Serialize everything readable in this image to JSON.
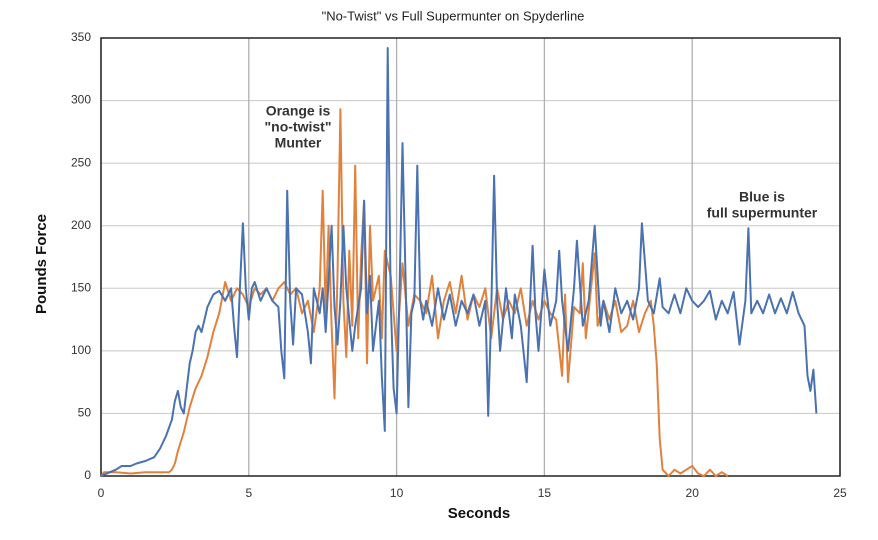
{
  "chart_data": {
    "type": "line",
    "title": "\"No-Twist\"  vs Full Supermunter on Spyderline",
    "x_label": "Seconds",
    "y_label": "Pounds Force",
    "xlim": [
      0,
      25
    ],
    "xticks": [
      0,
      5,
      10,
      15,
      20,
      25
    ],
    "ylim": [
      0,
      350
    ],
    "yticks": [
      0,
      50,
      100,
      150,
      200,
      250,
      300,
      350
    ],
    "grid": true,
    "annotations": [
      {
        "lines": [
          "Orange is",
          "\"no-twist\"",
          "Munter"
        ],
        "color": "#e0823d"
      },
      {
        "lines": [
          "Blue is",
          "full supermunter"
        ],
        "color": "#4a72b0"
      }
    ],
    "series": [
      {
        "color": "#4a72b0",
        "x": [
          0,
          0.3,
          0.5,
          0.7,
          1.0,
          1.2,
          1.5,
          1.8,
          2.0,
          2.2,
          2.4,
          2.5,
          2.6,
          2.7,
          2.8,
          2.9,
          3.0,
          3.1,
          3.2,
          3.3,
          3.4,
          3.5,
          3.6,
          3.8,
          4.0,
          4.2,
          4.4,
          4.5,
          4.6,
          4.7,
          4.8,
          4.9,
          5.0,
          5.1,
          5.2,
          5.4,
          5.6,
          5.8,
          6.0,
          6.1,
          6.2,
          6.3,
          6.4,
          6.5,
          6.6,
          6.8,
          7.0,
          7.1,
          7.2,
          7.4,
          7.5,
          7.6,
          7.8,
          7.9,
          8.0,
          8.1,
          8.2,
          8.3,
          8.5,
          8.6,
          8.8,
          8.9,
          9.0,
          9.1,
          9.2,
          9.4,
          9.5,
          9.6,
          9.7,
          9.8,
          9.9,
          10.0,
          10.1,
          10.2,
          10.3,
          10.4,
          10.5,
          10.6,
          10.7,
          10.8,
          10.9,
          11.0,
          11.2,
          11.4,
          11.6,
          11.8,
          12.0,
          12.2,
          12.4,
          12.6,
          12.8,
          13.0,
          13.1,
          13.2,
          13.3,
          13.4,
          13.5,
          13.7,
          13.9,
          14.0,
          14.2,
          14.4,
          14.5,
          14.6,
          14.7,
          14.8,
          15.0,
          15.2,
          15.4,
          15.5,
          15.6,
          15.8,
          16.0,
          16.1,
          16.3,
          16.5,
          16.7,
          16.9,
          17.0,
          17.2,
          17.4,
          17.6,
          17.8,
          18.0,
          18.2,
          18.3,
          18.5,
          18.7,
          18.9,
          19.0,
          19.2,
          19.4,
          19.6,
          19.8,
          20.0,
          20.2,
          20.4,
          20.6,
          20.8,
          21.0,
          21.2,
          21.4,
          21.6,
          21.8,
          21.9,
          22.0,
          22.2,
          22.4,
          22.6,
          22.8,
          23.0,
          23.2,
          23.4,
          23.6,
          23.8,
          23.9,
          24.0,
          24.1,
          24.2
        ],
        "values": [
          0,
          3,
          5,
          8,
          8,
          10,
          12,
          15,
          22,
          32,
          45,
          60,
          68,
          55,
          50,
          70,
          90,
          100,
          115,
          120,
          115,
          125,
          135,
          145,
          148,
          140,
          150,
          120,
          95,
          150,
          202,
          150,
          125,
          150,
          155,
          140,
          150,
          140,
          135,
          100,
          78,
          228,
          140,
          105,
          150,
          145,
          115,
          90,
          150,
          130,
          150,
          115,
          200,
          135,
          105,
          140,
          200,
          150,
          100,
          120,
          150,
          220,
          130,
          160,
          100,
          140,
          80,
          36,
          342,
          140,
          70,
          50,
          150,
          266,
          160,
          55,
          130,
          140,
          248,
          140,
          125,
          140,
          120,
          150,
          125,
          145,
          120,
          140,
          130,
          145,
          120,
          140,
          48,
          130,
          240,
          140,
          100,
          150,
          110,
          145,
          120,
          75,
          130,
          184,
          130,
          100,
          165,
          120,
          140,
          180,
          140,
          100,
          150,
          188,
          120,
          140,
          200,
          120,
          140,
          115,
          150,
          130,
          140,
          125,
          150,
          202,
          140,
          130,
          158,
          135,
          130,
          145,
          130,
          150,
          140,
          135,
          140,
          148,
          125,
          140,
          130,
          147,
          105,
          140,
          198,
          130,
          140,
          130,
          145,
          130,
          142,
          130,
          147,
          130,
          120,
          80,
          68,
          85,
          50
        ]
      },
      {
        "color": "#e0823d",
        "x": [
          0,
          0.1,
          0.5,
          1.0,
          1.5,
          2.0,
          2.3,
          2.4,
          2.5,
          2.6,
          2.8,
          3.0,
          3.2,
          3.4,
          3.6,
          3.8,
          4.0,
          4.2,
          4.4,
          4.6,
          4.8,
          5.0,
          5.2,
          5.4,
          5.6,
          5.8,
          6.0,
          6.2,
          6.4,
          6.6,
          6.8,
          7.0,
          7.2,
          7.4,
          7.5,
          7.6,
          7.7,
          7.8,
          7.9,
          8.0,
          8.1,
          8.2,
          8.3,
          8.4,
          8.5,
          8.6,
          8.7,
          8.8,
          8.9,
          9.0,
          9.1,
          9.2,
          9.4,
          9.5,
          9.6,
          9.8,
          10.0,
          10.2,
          10.4,
          10.6,
          10.8,
          11.0,
          11.2,
          11.4,
          11.6,
          11.8,
          12.0,
          12.2,
          12.4,
          12.6,
          12.8,
          13.0,
          13.2,
          13.4,
          13.6,
          13.8,
          14.0,
          14.2,
          14.4,
          14.6,
          14.8,
          15.0,
          15.2,
          15.4,
          15.6,
          15.7,
          15.8,
          16.0,
          16.2,
          16.3,
          16.4,
          16.6,
          16.7,
          16.8,
          17.0,
          17.2,
          17.4,
          17.6,
          17.8,
          18.0,
          18.2,
          18.4,
          18.6,
          18.7,
          18.8,
          18.9,
          19.0,
          19.2,
          19.4,
          19.6,
          19.8,
          20.0,
          20.2,
          20.4,
          20.6,
          20.8,
          21.0,
          21.2
        ],
        "values": [
          0,
          3,
          3,
          2,
          3,
          3,
          3,
          5,
          10,
          20,
          35,
          55,
          70,
          80,
          95,
          115,
          130,
          155,
          140,
          150,
          145,
          135,
          150,
          145,
          150,
          140,
          150,
          155,
          145,
          150,
          130,
          140,
          115,
          150,
          228,
          130,
          200,
          120,
          62,
          160,
          293,
          140,
          95,
          180,
          120,
          248,
          110,
          175,
          220,
          90,
          200,
          140,
          160,
          110,
          180,
          160,
          100,
          170,
          120,
          145,
          140,
          130,
          160,
          110,
          140,
          155,
          130,
          160,
          125,
          145,
          135,
          150,
          110,
          150,
          125,
          140,
          130,
          150,
          120,
          140,
          125,
          140,
          130,
          125,
          80,
          145,
          75,
          135,
          130,
          170,
          110,
          155,
          178,
          120,
          140,
          125,
          140,
          115,
          120,
          140,
          115,
          130,
          140,
          120,
          90,
          30,
          5,
          0,
          5,
          2,
          5,
          8,
          2,
          0,
          5,
          0,
          3,
          0
        ]
      }
    ]
  }
}
